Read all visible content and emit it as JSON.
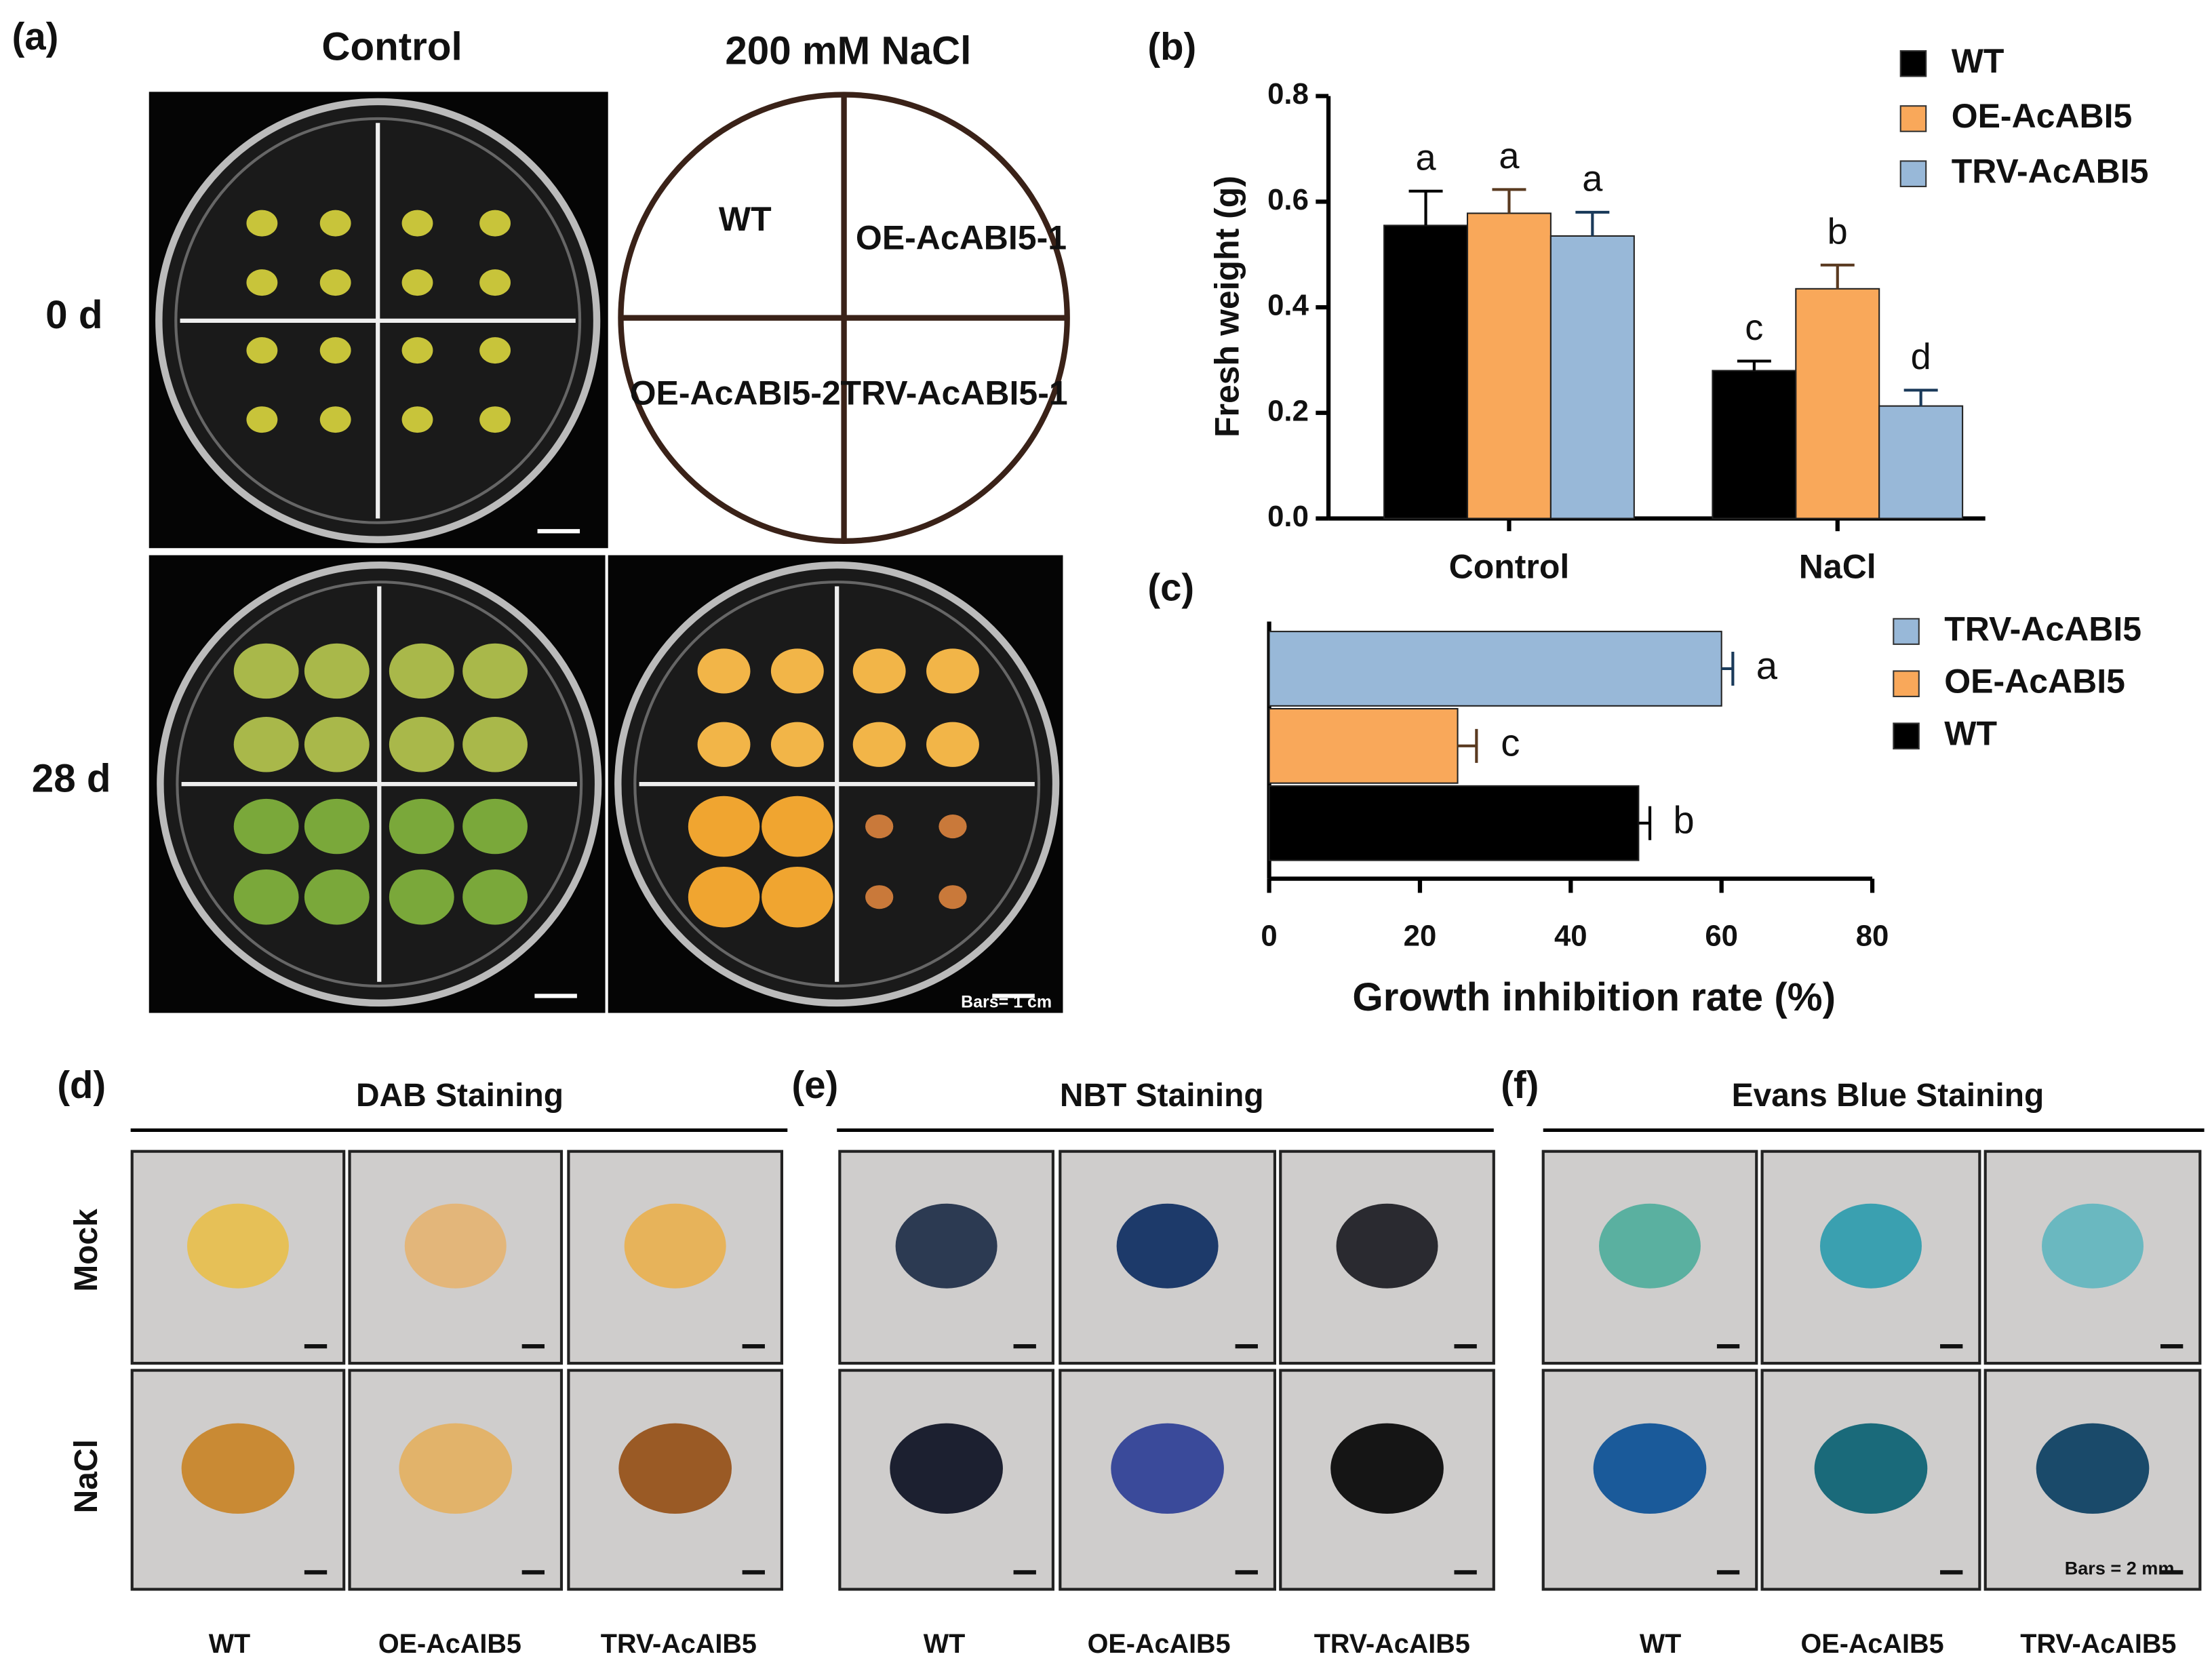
{
  "panels": {
    "a": {
      "label": "(a)",
      "col_titles": [
        "Control",
        "200 mM NaCl"
      ],
      "row_labels": [
        "0 d",
        "28 d"
      ],
      "quadrants": [
        "WT",
        "OE-AcABI5-1",
        "OE-AcABI5-2",
        "TRV-AcABI5-1"
      ],
      "scale_bar": "Bars= 1 cm"
    },
    "d": {
      "label": "(d)",
      "title": "DAB Staining",
      "rows": [
        "Mock",
        "NaCl"
      ],
      "columns": [
        "WT",
        "OE-AcAIB5",
        "TRV-AcAIB5"
      ]
    },
    "e": {
      "label": "(e)",
      "title": "NBT Staining",
      "columns": [
        "WT",
        "OE-AcAIB5",
        "TRV-AcAIB5"
      ]
    },
    "f": {
      "label": "(f)",
      "title": "Evans Blue  Staining",
      "columns": [
        "WT",
        "OE-AcAIB5",
        "TRV-AcAIB5"
      ],
      "scale_bar": "Bars = 2 mm"
    }
  },
  "chart_data": [
    {
      "type": "bar",
      "label": "(b)",
      "ylabel": "Fresh weight (g)",
      "categories": [
        "Control",
        "NaCl"
      ],
      "series": [
        {
          "name": "WT",
          "color": "#000000",
          "values": [
            0.555,
            0.28
          ],
          "errors": [
            0.065,
            0.018
          ],
          "letters": [
            "a",
            "c"
          ]
        },
        {
          "name": "OE-AcABI5",
          "color": "#f9a85a",
          "values": [
            0.578,
            0.435
          ],
          "errors": [
            0.045,
            0.045
          ],
          "letters": [
            "a",
            "b"
          ]
        },
        {
          "name": "TRV-AcABI5",
          "color": "#98b8d8",
          "values": [
            0.535,
            0.213
          ],
          "errors": [
            0.045,
            0.03
          ],
          "letters": [
            "a",
            "d"
          ]
        }
      ],
      "ylim": [
        0,
        0.8
      ],
      "yticks": [
        {
          "value": 0,
          "label": "0.0"
        },
        0.2,
        0.4,
        0.6,
        0.8
      ],
      "legend": "right"
    },
    {
      "type": "barh",
      "label": "(c)",
      "xlabel": "Growth inhibition rate (%)",
      "series": [
        {
          "name": "TRV-AcABI5",
          "color": "#98b8d8",
          "values": [
            60
          ],
          "errors": [
            1.5
          ],
          "letters": [
            "a"
          ]
        },
        {
          "name": "OE-AcABI5",
          "color": "#f9a85a",
          "values": [
            25
          ],
          "errors": [
            2.5
          ],
          "letters": [
            "c"
          ]
        },
        {
          "name": "WT",
          "color": "#000000",
          "values": [
            49
          ],
          "errors": [
            1.5
          ],
          "letters": [
            "b"
          ]
        }
      ],
      "xlim": [
        0,
        80
      ],
      "xticks": [
        0,
        20,
        40,
        60,
        80
      ],
      "legend": "right"
    }
  ]
}
